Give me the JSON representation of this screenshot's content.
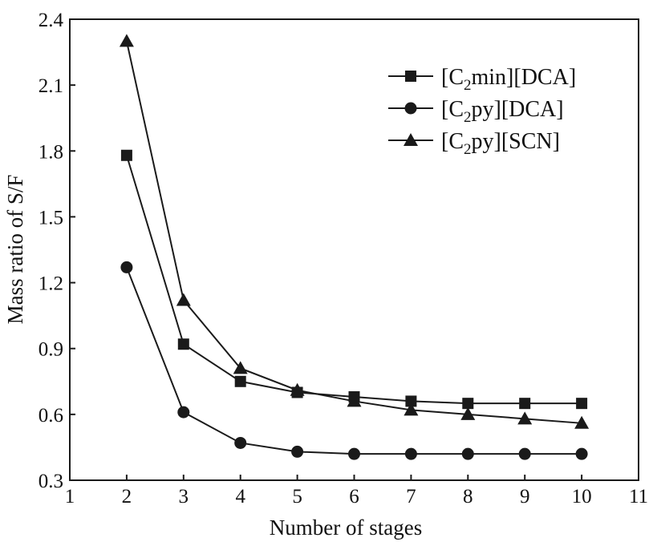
{
  "chart_data": {
    "type": "line",
    "xlabel": "Number of stages",
    "ylabel": "Mass ratio of S/F",
    "xlim": [
      1,
      11
    ],
    "ylim": [
      0.3,
      2.4
    ],
    "xticks": [
      "1",
      "2",
      "3",
      "4",
      "5",
      "6",
      "7",
      "8",
      "9",
      "10",
      "11"
    ],
    "yticks": [
      "0.3",
      "0.6",
      "0.9",
      "1.2",
      "1.5",
      "1.8",
      "2.1",
      "2.4"
    ],
    "x": [
      2,
      3,
      4,
      5,
      6,
      7,
      8,
      9,
      10
    ],
    "grid": false,
    "legend_position": "top-right",
    "series": [
      {
        "name_main": "[C",
        "name_sub": "2",
        "name_rest": "min][DCA]",
        "marker": "square",
        "values": [
          1.78,
          0.92,
          0.75,
          0.7,
          0.68,
          0.66,
          0.65,
          0.65,
          0.65
        ]
      },
      {
        "name_main": "[C",
        "name_sub": "2",
        "name_rest": "py][DCA]",
        "marker": "circle",
        "values": [
          1.27,
          0.61,
          0.47,
          0.43,
          0.42,
          0.42,
          0.42,
          0.42,
          0.42
        ]
      },
      {
        "name_main": "[C",
        "name_sub": "2",
        "name_rest": "py][SCN]",
        "marker": "triangle",
        "values": [
          2.3,
          1.12,
          0.81,
          0.71,
          0.66,
          0.62,
          0.6,
          0.58,
          0.56
        ]
      }
    ],
    "colors": {
      "line": "#1a1a1a"
    }
  }
}
